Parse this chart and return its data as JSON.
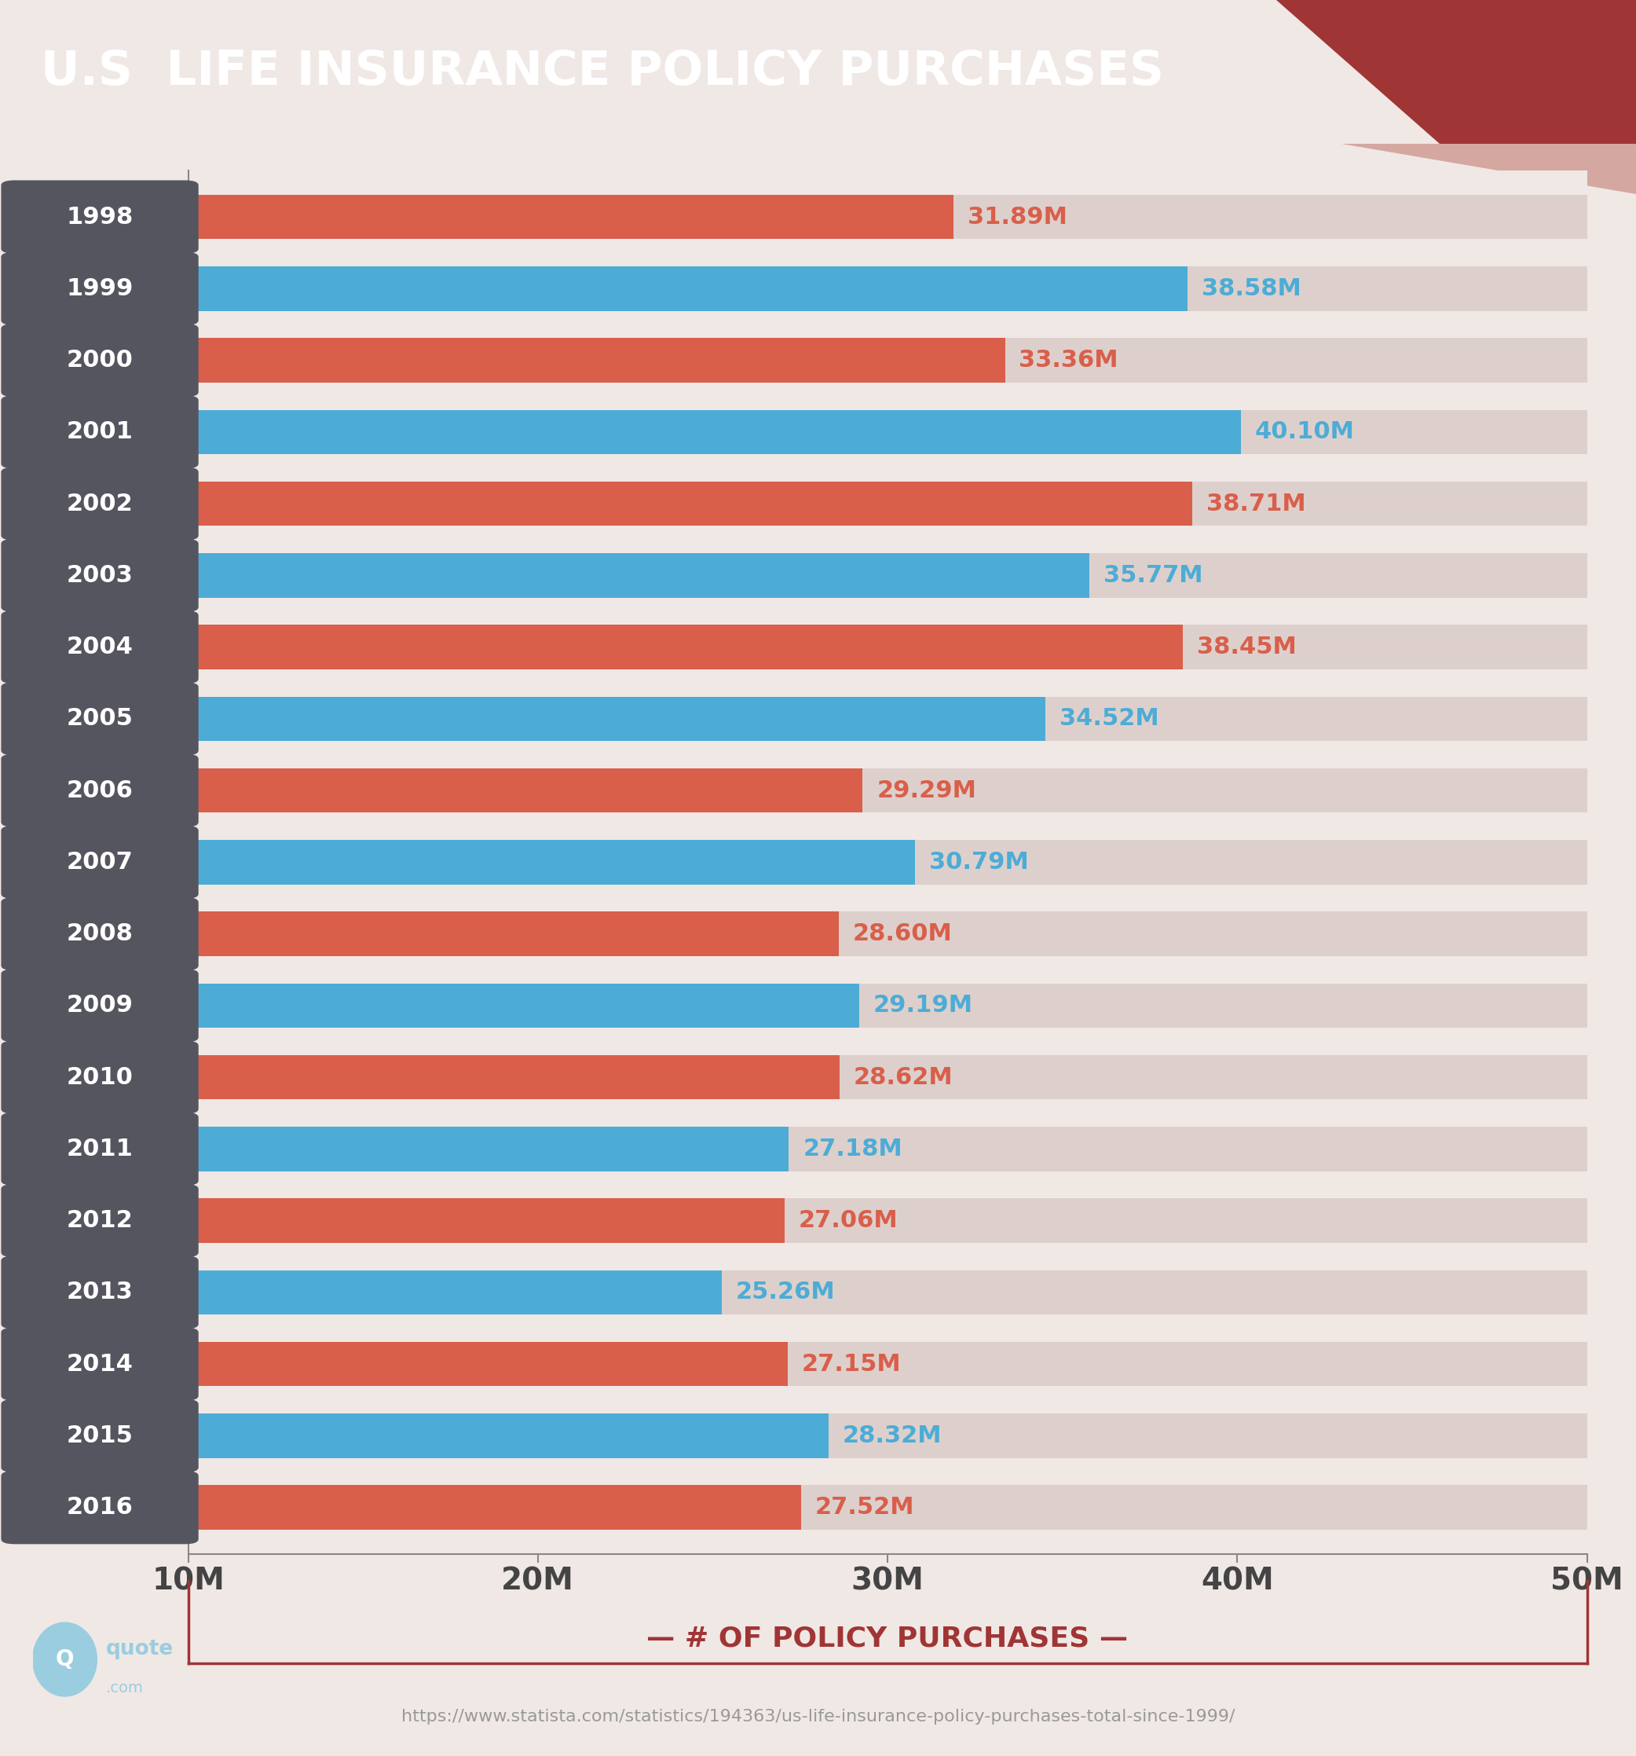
{
  "title": "U.S  LIFE INSURANCE POLICY PURCHASES",
  "years": [
    "1998",
    "1999",
    "2000",
    "2001",
    "2002",
    "2003",
    "2004",
    "2005",
    "2006",
    "2007",
    "2008",
    "2009",
    "2010",
    "2011",
    "2012",
    "2013",
    "2014",
    "2015",
    "2016"
  ],
  "values": [
    31.89,
    38.58,
    33.36,
    40.1,
    38.71,
    35.77,
    38.45,
    34.52,
    29.29,
    30.79,
    28.6,
    29.19,
    28.62,
    27.18,
    27.06,
    25.26,
    27.15,
    28.32,
    27.52
  ],
  "bar_colors": [
    "#d95f4b",
    "#4dacd6",
    "#d95f4b",
    "#4dacd6",
    "#d95f4b",
    "#4dacd6",
    "#d95f4b",
    "#4dacd6",
    "#d95f4b",
    "#4dacd6",
    "#d95f4b",
    "#4dacd6",
    "#d95f4b",
    "#4dacd6",
    "#d95f4b",
    "#4dacd6",
    "#d95f4b",
    "#4dacd6",
    "#d95f4b"
  ],
  "label_colors": [
    "#d95f4b",
    "#4dacd6",
    "#d95f4b",
    "#4dacd6",
    "#d95f4b",
    "#4dacd6",
    "#d95f4b",
    "#4dacd6",
    "#d95f4b",
    "#4dacd6",
    "#d95f4b",
    "#4dacd6",
    "#d95f4b",
    "#4dacd6",
    "#d95f4b",
    "#4dacd6",
    "#d95f4b",
    "#4dacd6",
    "#d95f4b"
  ],
  "background_color": "#f0e8e5",
  "title_bg_color": "#a03535",
  "year_label_bg_color": "#555560",
  "xlabel": "# OF POLICY PURCHASES",
  "xlim_min": 10,
  "xlim_max": 50,
  "xticks": [
    10,
    20,
    30,
    40,
    50
  ],
  "xtick_labels": [
    "10M",
    "20M",
    "30M",
    "40M",
    "50M"
  ],
  "url": "https://www.statista.com/statistics/194363/us-life-insurance-policy-purchases-total-since-1999/",
  "track_color": "#ddd0cc",
  "track_color_light": "#e8e0dc"
}
